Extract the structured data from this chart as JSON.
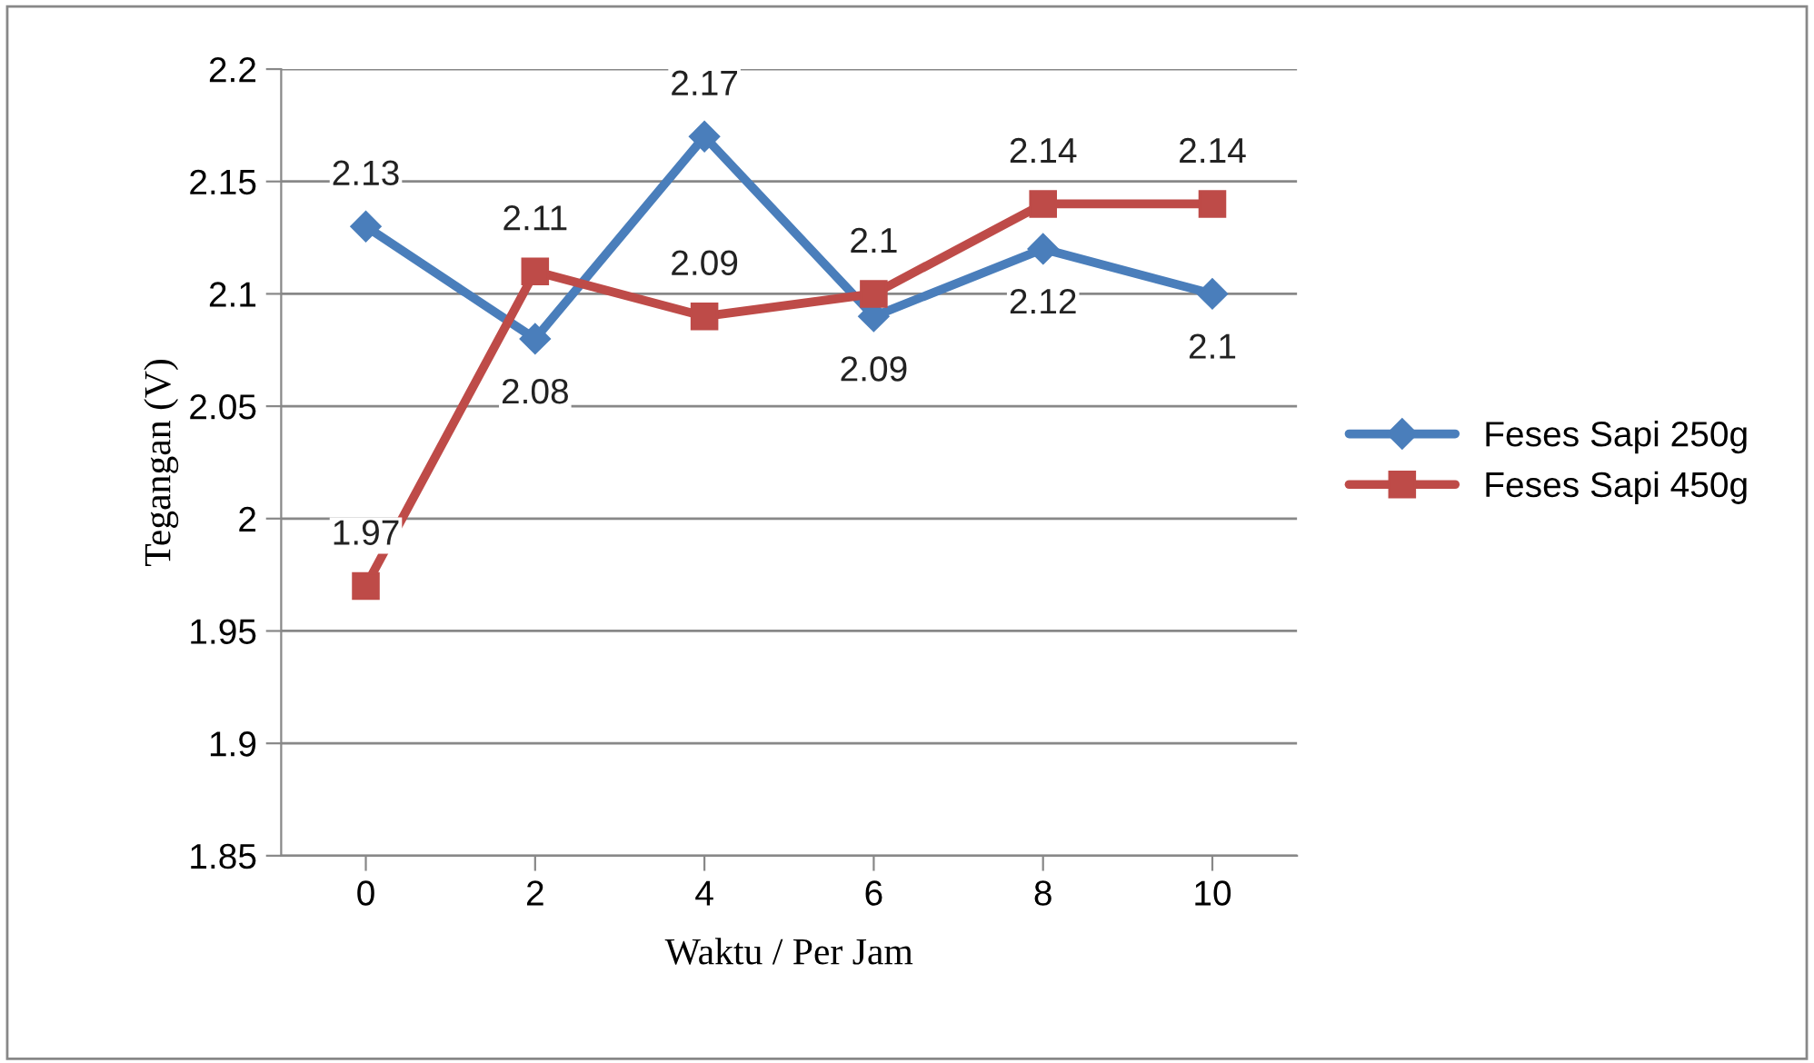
{
  "chart_data": {
    "type": "line",
    "xlabel": "Waktu / Per Jam",
    "ylabel": "Tegangan (V)",
    "categories": [
      "0",
      "2",
      "4",
      "6",
      "8",
      "10"
    ],
    "series": [
      {
        "name": "Feses Sapi 250g",
        "color": "#4a7ebb",
        "marker": "diamond",
        "values": [
          2.13,
          2.08,
          2.17,
          2.09,
          2.12,
          2.1
        ]
      },
      {
        "name": "Feses Sapi 450g",
        "color": "#be4b48",
        "marker": "square",
        "values": [
          1.97,
          2.11,
          2.09,
          2.1,
          2.14,
          2.14
        ]
      }
    ],
    "ylim": [
      1.85,
      2.2
    ],
    "yticks": [
      1.85,
      1.9,
      1.95,
      2,
      2.05,
      2.1,
      2.15,
      2.2
    ],
    "grid": "y",
    "legend": "right",
    "data_labels": true,
    "line_style": "solid"
  }
}
